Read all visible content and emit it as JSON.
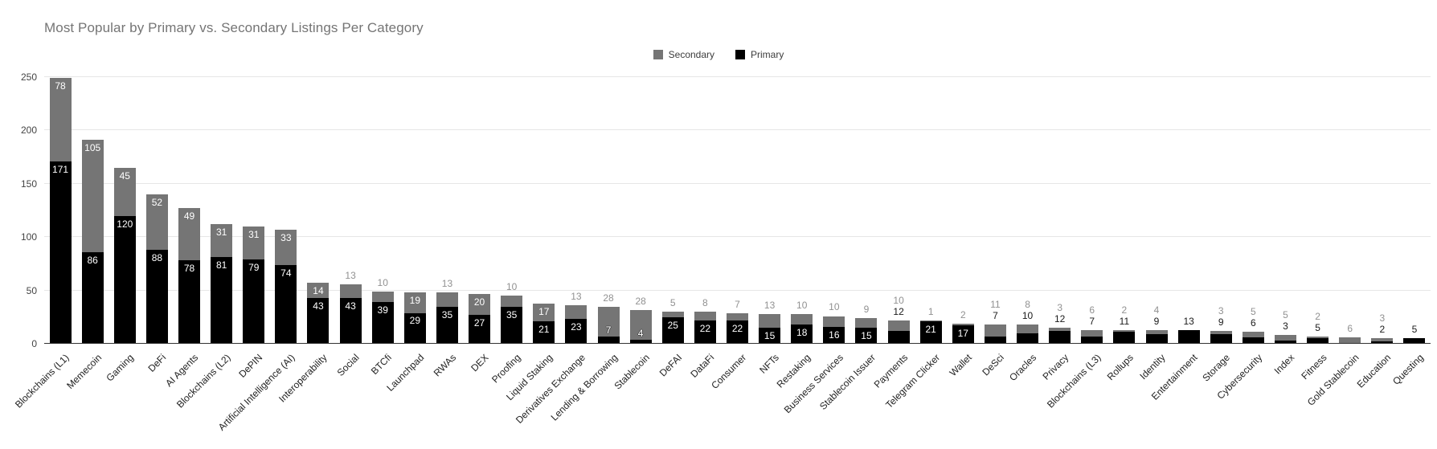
{
  "title": "Most Popular by Primary vs. Secondary Listings Per Category",
  "legend": {
    "position": "top",
    "items": [
      {
        "label": "Secondary",
        "color": "#757575"
      },
      {
        "label": "Primary",
        "color": "#000000"
      }
    ]
  },
  "colors": {
    "primary_series": "#000000",
    "secondary_series": "#757575",
    "title_text": "#757575",
    "gridline": "#e6e6e6",
    "baseline": "#333333",
    "inside_label": "#ffffff",
    "outside_secondary_label": "#919191",
    "outside_primary_label": "#1a1a1a"
  },
  "chart_data": {
    "type": "bar",
    "stacked": true,
    "title": "Most Popular by Primary vs. Secondary Listings Per Category",
    "xlabel": "",
    "ylabel": "",
    "ylim": [
      0,
      250
    ],
    "y_ticks": [
      0,
      50,
      100,
      150,
      200,
      250
    ],
    "grid": true,
    "legend_position": "top",
    "legend_order": [
      "Secondary",
      "Primary"
    ],
    "categories": [
      "Blockchains (L1)",
      "Memecoin",
      "Gaming",
      "DeFi",
      "AI Agents",
      "Blockchains (L2)",
      "DePIN",
      "Artificial Intelligence (AI)",
      "Interoperability",
      "Social",
      "BTCfi",
      "Launchpad",
      "RWAs",
      "DEX",
      "Proofing",
      "Liquid Staking",
      "Derivatives Exchange",
      "Lending & Borrowing",
      "Stablecoin",
      "DeFAI",
      "DataFi",
      "Consumer",
      "NFTs",
      "Restaking",
      "Business Services",
      "Stablecoin Issuer",
      "Payments",
      "Telegram Clicker",
      "Wallet",
      "DeSci",
      "Oracles",
      "Privacy",
      "Blockchains (L3)",
      "Rollups",
      "Identity",
      "Entertainment",
      "Storage",
      "Cybersecurity",
      "Index",
      "Fitness",
      "Gold Stablecoin",
      "Education",
      "Questing"
    ],
    "series": [
      {
        "name": "Primary",
        "color": "#000000",
        "stack_position": "bottom",
        "values": [
          171,
          86,
          120,
          88,
          78,
          81,
          79,
          74,
          43,
          43,
          39,
          29,
          35,
          27,
          35,
          21,
          23,
          7,
          4,
          25,
          22,
          22,
          15,
          18,
          16,
          15,
          12,
          21,
          17,
          7,
          10,
          12,
          7,
          11,
          9,
          13,
          9,
          6,
          3,
          5,
          0,
          2,
          5
        ]
      },
      {
        "name": "Secondary",
        "color": "#757575",
        "stack_position": "top",
        "values": [
          78,
          105,
          45,
          52,
          49,
          31,
          31,
          33,
          14,
          13,
          10,
          19,
          13,
          20,
          10,
          17,
          13,
          28,
          28,
          5,
          8,
          7,
          13,
          10,
          10,
          9,
          10,
          1,
          2,
          11,
          8,
          3,
          6,
          2,
          4,
          0,
          3,
          5,
          5,
          2,
          6,
          3,
          0
        ]
      }
    ]
  }
}
